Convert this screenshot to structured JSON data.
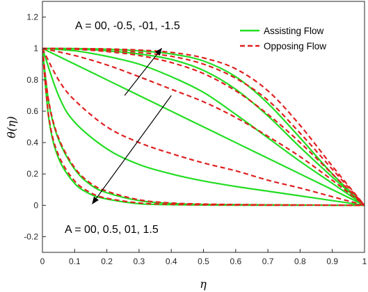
{
  "chart_data": {
    "type": "line",
    "title": "",
    "xlabel": "η",
    "ylabel": "θ(η)",
    "xlim": [
      0,
      1
    ],
    "ylim": [
      -0.3,
      1.3
    ],
    "xticks": [
      "0",
      "0.1",
      "0.2",
      "0.3",
      "0.4",
      "0.5",
      "0.6",
      "0.7",
      "0.8",
      "0.9",
      "1"
    ],
    "yticks": [
      "-0.2",
      "0",
      "0.2",
      "0.4",
      "0.6",
      "0.8",
      "1",
      "1.2"
    ],
    "grid": false,
    "legend": {
      "placement": "top-right",
      "entries": [
        {
          "label": "Assisting Flow",
          "color": "#22dd22",
          "style": "solid"
        },
        {
          "label": "Opposing Flow",
          "color": "#e02020",
          "style": "dashed"
        }
      ]
    },
    "annotations": [
      {
        "text": "A = 00, -0.5, -01, -1.5",
        "arrow_from": [
          0.255,
          0.7
        ],
        "arrow_to": [
          0.37,
          1.0
        ]
      },
      {
        "text": "A = 00, 0.5, 01, 1.5",
        "arrow_from": [
          0.4,
          0.7
        ],
        "arrow_to": [
          0.155,
          0.01
        ]
      }
    ],
    "series": [
      {
        "name": "Assisting Flow",
        "A": "1.5",
        "style": "solid",
        "color": "#22dd22",
        "x": [
          0,
          0.02,
          0.05,
          0.1,
          0.15,
          0.2,
          0.3,
          0.4,
          0.5,
          0.6,
          0.7,
          0.8,
          0.9,
          1
        ],
        "y": [
          1,
          0.55,
          0.3,
          0.14,
          0.07,
          0.04,
          0.01,
          0.004,
          0.002,
          0.001,
          0.001,
          0.001,
          0.001,
          0
        ]
      },
      {
        "name": "Assisting Flow",
        "A": "01",
        "style": "solid",
        "color": "#22dd22",
        "x": [
          0,
          0.02,
          0.05,
          0.1,
          0.15,
          0.2,
          0.3,
          0.4,
          0.5,
          0.6,
          0.7,
          0.8,
          0.9,
          1
        ],
        "y": [
          1,
          0.65,
          0.42,
          0.23,
          0.13,
          0.08,
          0.03,
          0.012,
          0.006,
          0.004,
          0.003,
          0.002,
          0.001,
          0
        ]
      },
      {
        "name": "Assisting Flow",
        "A": "0.5",
        "style": "solid",
        "color": "#22dd22",
        "x": [
          0,
          0.05,
          0.1,
          0.2,
          0.3,
          0.4,
          0.5,
          0.6,
          0.7,
          0.8,
          0.9,
          1
        ],
        "y": [
          1,
          0.7,
          0.53,
          0.36,
          0.26,
          0.2,
          0.155,
          0.12,
          0.09,
          0.06,
          0.03,
          0
        ]
      },
      {
        "name": "Assisting Flow",
        "A": "00",
        "style": "solid",
        "color": "#22dd22",
        "x": [
          0,
          0.1,
          0.2,
          0.3,
          0.4,
          0.5,
          0.6,
          0.7,
          0.8,
          0.9,
          1
        ],
        "y": [
          1,
          0.9,
          0.8,
          0.7,
          0.6,
          0.5,
          0.4,
          0.3,
          0.2,
          0.1,
          0
        ]
      },
      {
        "name": "Assisting Flow",
        "A": "-0.5",
        "style": "solid",
        "color": "#22dd22",
        "x": [
          0,
          0.1,
          0.2,
          0.3,
          0.4,
          0.5,
          0.6,
          0.7,
          0.8,
          0.9,
          1
        ],
        "y": [
          1,
          0.985,
          0.95,
          0.9,
          0.82,
          0.72,
          0.58,
          0.43,
          0.28,
          0.14,
          0
        ]
      },
      {
        "name": "Assisting Flow",
        "A": "-01",
        "style": "solid",
        "color": "#22dd22",
        "x": [
          0,
          0.1,
          0.2,
          0.3,
          0.4,
          0.5,
          0.6,
          0.7,
          0.8,
          0.9,
          1
        ],
        "y": [
          1,
          0.997,
          0.985,
          0.965,
          0.93,
          0.86,
          0.74,
          0.57,
          0.37,
          0.18,
          0
        ]
      },
      {
        "name": "Assisting Flow",
        "A": "-1.5",
        "style": "solid",
        "color": "#22dd22",
        "x": [
          0,
          0.1,
          0.2,
          0.3,
          0.4,
          0.5,
          0.6,
          0.7,
          0.8,
          0.9,
          1
        ],
        "y": [
          1,
          0.999,
          0.995,
          0.985,
          0.965,
          0.92,
          0.82,
          0.65,
          0.43,
          0.2,
          0
        ]
      },
      {
        "name": "Opposing Flow",
        "A": "1.5",
        "style": "dashed",
        "color": "#e02020",
        "x": [
          0,
          0.02,
          0.05,
          0.1,
          0.15,
          0.2,
          0.3,
          0.4,
          0.5,
          0.6,
          0.7,
          0.8,
          0.9,
          1
        ],
        "y": [
          1,
          0.56,
          0.32,
          0.155,
          0.08,
          0.045,
          0.015,
          0.006,
          0.003,
          0.002,
          0.001,
          0.001,
          0.001,
          0
        ]
      },
      {
        "name": "Opposing Flow",
        "A": "01",
        "style": "dashed",
        "color": "#e02020",
        "x": [
          0,
          0.02,
          0.05,
          0.1,
          0.15,
          0.2,
          0.3,
          0.4,
          0.5,
          0.6,
          0.7,
          0.8,
          0.9,
          1
        ],
        "y": [
          1,
          0.66,
          0.43,
          0.24,
          0.14,
          0.09,
          0.035,
          0.015,
          0.008,
          0.005,
          0.003,
          0.002,
          0.001,
          0
        ]
      },
      {
        "name": "Opposing Flow",
        "A": "0.5",
        "style": "dashed",
        "color": "#e02020",
        "x": [
          0,
          0.05,
          0.1,
          0.2,
          0.3,
          0.4,
          0.5,
          0.6,
          0.7,
          0.8,
          0.9,
          1
        ],
        "y": [
          1,
          0.8,
          0.67,
          0.5,
          0.4,
          0.33,
          0.27,
          0.22,
          0.16,
          0.11,
          0.055,
          0
        ]
      },
      {
        "name": "Opposing Flow",
        "A": "00",
        "style": "dashed",
        "color": "#e02020",
        "x": [
          0,
          0.1,
          0.2,
          0.3,
          0.4,
          0.5,
          0.6,
          0.7,
          0.8,
          0.9,
          1
        ],
        "y": [
          1,
          0.955,
          0.895,
          0.82,
          0.74,
          0.66,
          0.56,
          0.44,
          0.31,
          0.16,
          0
        ]
      },
      {
        "name": "Opposing Flow",
        "A": "-0.5",
        "style": "dashed",
        "color": "#e02020",
        "x": [
          0,
          0.1,
          0.2,
          0.3,
          0.4,
          0.5,
          0.6,
          0.7,
          0.8,
          0.9,
          1
        ],
        "y": [
          1,
          0.995,
          0.98,
          0.955,
          0.91,
          0.84,
          0.73,
          0.58,
          0.4,
          0.2,
          0
        ]
      },
      {
        "name": "Opposing Flow",
        "A": "-01",
        "style": "dashed",
        "color": "#e02020",
        "x": [
          0,
          0.1,
          0.2,
          0.3,
          0.4,
          0.5,
          0.6,
          0.7,
          0.8,
          0.9,
          1
        ],
        "y": [
          1,
          0.998,
          0.99,
          0.975,
          0.95,
          0.9,
          0.81,
          0.67,
          0.46,
          0.23,
          0
        ]
      },
      {
        "name": "Opposing Flow",
        "A": "-1.5",
        "style": "dashed",
        "color": "#e02020",
        "x": [
          0,
          0.1,
          0.2,
          0.3,
          0.4,
          0.5,
          0.6,
          0.7,
          0.8,
          0.9,
          1
        ],
        "y": [
          1,
          0.999,
          0.997,
          0.99,
          0.975,
          0.94,
          0.87,
          0.73,
          0.51,
          0.25,
          0
        ]
      }
    ]
  }
}
